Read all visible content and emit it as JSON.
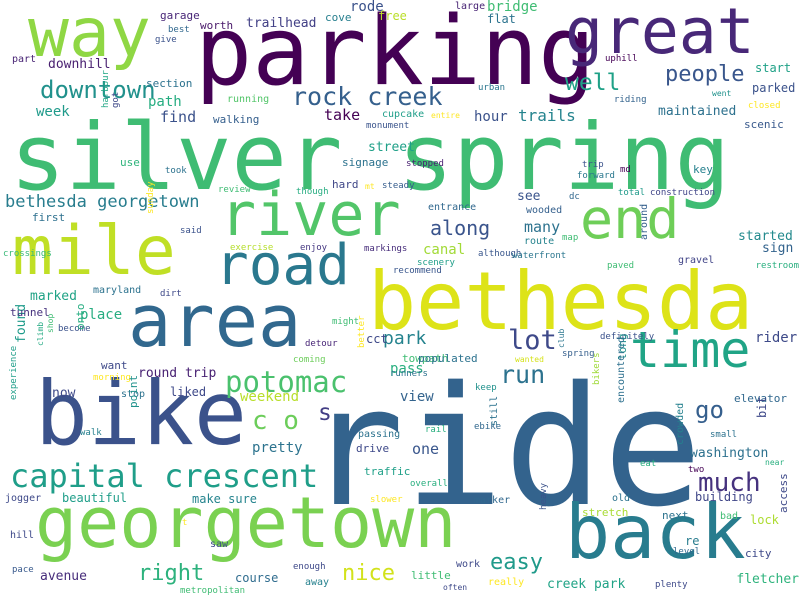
{
  "words": [
    {
      "text": "ride",
      "color": "#33638d"
    },
    {
      "text": "silver spring",
      "color": "#3fbc73"
    },
    {
      "text": "parking",
      "color": "#440154"
    },
    {
      "text": "bike",
      "color": "#3b528b"
    },
    {
      "text": "georgetown",
      "color": "#7ad151"
    },
    {
      "text": "bethesda",
      "color": "#dde318"
    },
    {
      "text": "back",
      "color": "#287c8e"
    },
    {
      "text": "area",
      "color": "#31688e"
    },
    {
      "text": "great",
      "color": "#482878"
    },
    {
      "text": "way",
      "color": "#8fd744"
    },
    {
      "text": "mile",
      "color": "#c0df25"
    },
    {
      "text": "river",
      "color": "#52c569"
    },
    {
      "text": "end",
      "color": "#6ece58"
    },
    {
      "text": "time",
      "color": "#20a486"
    },
    {
      "text": "road",
      "color": "#2a788e"
    },
    {
      "text": "capital crescent",
      "color": "#1f9e89"
    },
    {
      "text": "potomac",
      "color": "#4ac16d"
    },
    {
      "text": "rock creek",
      "color": "#35608d"
    },
    {
      "text": "downtown",
      "color": "#21918c"
    },
    {
      "text": "people",
      "color": "#39568c"
    },
    {
      "text": "well",
      "color": "#1fa187"
    },
    {
      "text": "right",
      "color": "#2db27d"
    },
    {
      "text": "nice",
      "color": "#d2e21b"
    },
    {
      "text": "easy",
      "color": "#1f9a8a"
    },
    {
      "text": "run",
      "color": "#2c728e"
    },
    {
      "text": "lot",
      "color": "#3e4989"
    },
    {
      "text": "much",
      "color": "#46327e"
    },
    {
      "text": "go",
      "color": "#355f8d"
    },
    {
      "text": "c o",
      "color": "#6ccd5a"
    },
    {
      "text": "s",
      "color": "#433e85"
    },
    {
      "text": "bethesda georgetown",
      "color": "#287d8e"
    },
    {
      "text": "along",
      "color": "#3a548c"
    },
    {
      "text": "trails",
      "color": "#25848e"
    },
    {
      "text": "take",
      "color": "#440154"
    },
    {
      "text": "many",
      "color": "#2c728e"
    },
    {
      "text": "park",
      "color": "#25838e"
    },
    {
      "text": "canal",
      "color": "#a2da37"
    },
    {
      "text": "started",
      "color": "#238a8d"
    },
    {
      "text": "sign",
      "color": "#33638d"
    },
    {
      "text": "weekend",
      "color": "#b8de29"
    },
    {
      "text": "round trip",
      "color": "#482173"
    },
    {
      "text": "pretty",
      "color": "#2c738e"
    },
    {
      "text": "view",
      "color": "#33638d"
    },
    {
      "text": "one",
      "color": "#39568c"
    },
    {
      "text": "washington",
      "color": "#2d718e"
    },
    {
      "text": "maintained",
      "color": "#2d718e"
    },
    {
      "text": "hour",
      "color": "#3b528b"
    },
    {
      "text": "path",
      "color": "#26ad81"
    },
    {
      "text": "find",
      "color": "#3b528b"
    },
    {
      "text": "week",
      "color": "#1f9a8a"
    },
    {
      "text": "rider",
      "color": "#3e4a89"
    },
    {
      "text": "bridge",
      "color": "#3fbc73"
    },
    {
      "text": "street",
      "color": "#1fa088"
    },
    {
      "text": "place",
      "color": "#27ad81"
    },
    {
      "text": "marked",
      "color": "#20a386"
    },
    {
      "text": "see",
      "color": "#3a548c"
    },
    {
      "text": "found",
      "color": "#1e9b8a"
    },
    {
      "text": "creek park",
      "color": "#20a386"
    },
    {
      "text": "fletcher",
      "color": "#2eb37c"
    },
    {
      "text": "course",
      "color": "#2f6c8e"
    },
    {
      "text": "avenue",
      "color": "#472d7b"
    },
    {
      "text": "make sure",
      "color": "#25848e"
    },
    {
      "text": "beautiful",
      "color": "#1f9e89"
    },
    {
      "text": "trailhead",
      "color": "#424086"
    },
    {
      "text": "lock",
      "color": "#addc30"
    },
    {
      "text": "building",
      "color": "#404688"
    },
    {
      "text": "now",
      "color": "#3e4989"
    },
    {
      "text": "pass",
      "color": "#29af7f"
    },
    {
      "text": "free",
      "color": "#bade28"
    },
    {
      "text": "flat",
      "color": "#2c738e"
    },
    {
      "text": "rode",
      "color": "#3b528b"
    },
    {
      "text": "cove",
      "color": "#277f8e"
    },
    {
      "text": "garage",
      "color": "#482677"
    },
    {
      "text": "worth",
      "color": "#481769"
    },
    {
      "text": "downhill",
      "color": "#481f70"
    },
    {
      "text": "part",
      "color": "#482475"
    },
    {
      "text": "section",
      "color": "#2c728e"
    },
    {
      "text": "give",
      "color": "#3b528b"
    },
    {
      "text": "best",
      "color": "#31688e"
    },
    {
      "text": "large",
      "color": "#482475"
    },
    {
      "text": "uphill",
      "color": "#440154"
    },
    {
      "text": "start",
      "color": "#1fa187"
    },
    {
      "text": "parked",
      "color": "#3b528b"
    },
    {
      "text": "went",
      "color": "#20928c"
    },
    {
      "text": "closed",
      "color": "#fde725"
    },
    {
      "text": "riding",
      "color": "#33638d"
    },
    {
      "text": "urban",
      "color": "#2a768e"
    },
    {
      "text": "running",
      "color": "#52c569"
    },
    {
      "text": "walking",
      "color": "#355f8d"
    },
    {
      "text": "got",
      "color": "#3e4989"
    },
    {
      "text": "harbour",
      "color": "#22a785"
    },
    {
      "text": "monument",
      "color": "#3a548c"
    },
    {
      "text": "cupcake",
      "color": "#1f9e89"
    },
    {
      "text": "entire",
      "color": "#fde725"
    },
    {
      "text": "scenic",
      "color": "#38598c"
    },
    {
      "text": "use",
      "color": "#2fb47c"
    },
    {
      "text": "took",
      "color": "#2c728e"
    },
    {
      "text": "signage",
      "color": "#2c728e"
    },
    {
      "text": "stopped",
      "color": "#481f70"
    },
    {
      "text": "hard",
      "color": "#3f4788"
    },
    {
      "text": "steady",
      "color": "#365d8d"
    },
    {
      "text": "mt",
      "color": "#fde725"
    },
    {
      "text": "though",
      "color": "#27ad81"
    },
    {
      "text": "review",
      "color": "#3fbc73"
    },
    {
      "text": "trip",
      "color": "#3b528b"
    },
    {
      "text": "forward",
      "color": "#2a788e"
    },
    {
      "text": "md",
      "color": "#440154"
    },
    {
      "text": "total",
      "color": "#1f9a8a"
    },
    {
      "text": "construction",
      "color": "#404588"
    },
    {
      "text": "key",
      "color": "#26818e"
    },
    {
      "text": "first",
      "color": "#2d708e"
    },
    {
      "text": "said",
      "color": "#3b528b"
    },
    {
      "text": "crossings",
      "color": "#38b977"
    },
    {
      "text": "sunday",
      "color": "#fde725"
    },
    {
      "text": "entrance",
      "color": "#31688e"
    },
    {
      "text": "wooded",
      "color": "#35608d"
    },
    {
      "text": "dc",
      "color": "#31688e"
    },
    {
      "text": "route",
      "color": "#25838e"
    },
    {
      "text": "map",
      "color": "#3fbc73"
    },
    {
      "text": "markings",
      "color": "#472d7b"
    },
    {
      "text": "exercise",
      "color": "#b5de2b"
    },
    {
      "text": "enjoy",
      "color": "#453781"
    },
    {
      "text": "scenery",
      "color": "#1f9e89"
    },
    {
      "text": "although",
      "color": "#39568c"
    },
    {
      "text": "waterfront",
      "color": "#2a768e"
    },
    {
      "text": "recommend",
      "color": "#39568c"
    },
    {
      "text": "paved",
      "color": "#3fbc73"
    },
    {
      "text": "gravel",
      "color": "#414487"
    },
    {
      "text": "restroom",
      "color": "#29af7f"
    },
    {
      "text": "around",
      "color": "#35608d"
    },
    {
      "text": "maryland",
      "color": "#2c728e"
    },
    {
      "text": "dirt",
      "color": "#3e4989"
    },
    {
      "text": "tunnel",
      "color": "#46327e"
    },
    {
      "text": "become",
      "color": "#3b528b"
    },
    {
      "text": "might",
      "color": "#3fbc73"
    },
    {
      "text": "detour",
      "color": "#482677"
    },
    {
      "text": "cct",
      "color": "#3e4989"
    },
    {
      "text": "towpath",
      "color": "#3fbc73"
    },
    {
      "text": "populated",
      "color": "#2c728e"
    },
    {
      "text": "coming",
      "color": "#6ccd5a"
    },
    {
      "text": "definitely",
      "color": "#3b528b"
    },
    {
      "text": "wanted",
      "color": "#d5e21a"
    },
    {
      "text": "spring",
      "color": "#355f8d"
    },
    {
      "text": "climb",
      "color": "#24aa83"
    },
    {
      "text": "shop",
      "color": "#3fbc73"
    },
    {
      "text": "onto",
      "color": "#26ad81"
    },
    {
      "text": "want",
      "color": "#3e4989"
    },
    {
      "text": "morning",
      "color": "#fde725"
    },
    {
      "text": "better",
      "color": "#fde725"
    },
    {
      "text": "runners",
      "color": "#2c728e"
    },
    {
      "text": "club",
      "color": "#2a768e"
    },
    {
      "text": "long",
      "color": "#21918c"
    },
    {
      "text": "bikers",
      "color": "#a0da39"
    },
    {
      "text": "keep",
      "color": "#21918c"
    },
    {
      "text": "liked",
      "color": "#3e4989"
    },
    {
      "text": "stop",
      "color": "#2c728e"
    },
    {
      "text": "point",
      "color": "#20928c"
    },
    {
      "text": "experience",
      "color": "#1f9e89"
    },
    {
      "text": "walk",
      "color": "#26818e"
    },
    {
      "text": "passing",
      "color": "#2c728e"
    },
    {
      "text": "rail",
      "color": "#29af7f"
    },
    {
      "text": "ebike",
      "color": "#31688e"
    },
    {
      "text": "drive",
      "color": "#3e4989"
    },
    {
      "text": "still",
      "color": "#2c728e"
    },
    {
      "text": "traffic",
      "color": "#1fa088"
    },
    {
      "text": "overall",
      "color": "#29af7f"
    },
    {
      "text": "encountered",
      "color": "#2d708e"
    },
    {
      "text": "elevator",
      "color": "#31688e"
    },
    {
      "text": "bit",
      "color": "#3e4989"
    },
    {
      "text": "small",
      "color": "#2c728e"
    },
    {
      "text": "near",
      "color": "#29af7f"
    },
    {
      "text": "crowded",
      "color": "#26818e"
    },
    {
      "text": "eat",
      "color": "#29af7f"
    },
    {
      "text": "two",
      "color": "#440154"
    },
    {
      "text": "old",
      "color": "#2c728e"
    },
    {
      "text": "slower",
      "color": "#fde725"
    },
    {
      "text": "jogger",
      "color": "#3e4989"
    },
    {
      "text": "marker",
      "color": "#31688e"
    },
    {
      "text": "stretch",
      "color": "#a8db34"
    },
    {
      "text": "next",
      "color": "#2c728e"
    },
    {
      "text": "bad",
      "color": "#3fbc73"
    },
    {
      "text": "heavy",
      "color": "#3b528b"
    },
    {
      "text": "re",
      "color": "#287c8e"
    },
    {
      "text": "hill",
      "color": "#3e4989"
    },
    {
      "text": "t",
      "color": "#fde725"
    },
    {
      "text": "saw",
      "color": "#3e4989"
    },
    {
      "text": "access",
      "color": "#3e4989"
    },
    {
      "text": "city",
      "color": "#3e4989"
    },
    {
      "text": "level",
      "color": "#31688e"
    },
    {
      "text": "enough",
      "color": "#3e4989"
    },
    {
      "text": "pace",
      "color": "#38598c"
    },
    {
      "text": "away",
      "color": "#26818e"
    },
    {
      "text": "little",
      "color": "#3fbc73"
    },
    {
      "text": "work",
      "color": "#3e4989"
    },
    {
      "text": "often",
      "color": "#3e4989"
    },
    {
      "text": "really",
      "color": "#fde725"
    },
    {
      "text": "metropolitan",
      "color": "#3fbc73"
    },
    {
      "text": "plenty",
      "color": "#3e4989"
    }
  ]
}
